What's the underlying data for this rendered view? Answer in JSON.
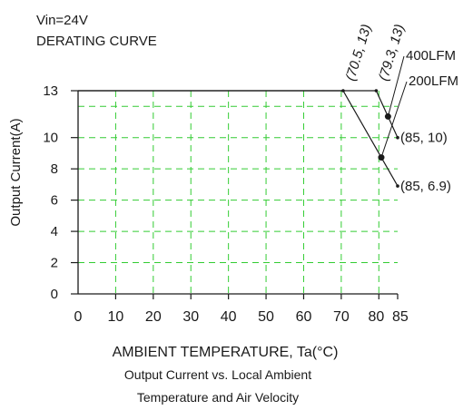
{
  "header": {
    "line1": "Vin=24V",
    "line2": "DERATING CURVE"
  },
  "chart_data": {
    "type": "line",
    "title": "DERATING CURVE",
    "xlabel": "AMBIENT TEMPERATURE, Ta(°C)",
    "ylabel": "Output Current(A)",
    "xlim": [
      0,
      85
    ],
    "ylim": [
      0,
      13
    ],
    "x_ticks": [
      0,
      10,
      20,
      30,
      40,
      50,
      60,
      70,
      80,
      85
    ],
    "y_ticks": [
      0,
      2,
      4,
      6,
      8,
      10,
      13
    ],
    "grid": true,
    "series": [
      {
        "name": "400LFM",
        "x": [
          0,
          79.3,
          85
        ],
        "y": [
          13,
          13,
          10
        ]
      },
      {
        "name": "200LFM",
        "x": [
          0,
          70.5,
          85
        ],
        "y": [
          13,
          13,
          6.9
        ]
      }
    ],
    "annotations": [
      {
        "text": "(70.5,  13)",
        "x": 70.5,
        "y": 13
      },
      {
        "text": "(79.3,  13)",
        "x": 79.3,
        "y": 13
      },
      {
        "text": "(85,  10)",
        "x": 85,
        "y": 10
      },
      {
        "text": "(85,  6.9)",
        "x": 85,
        "y": 6.9
      }
    ]
  },
  "caption": {
    "line1": "Output Current vs. Local Ambient",
    "line2": "Temperature and Air Velocity"
  },
  "colors": {
    "grid": "#33cc33",
    "axis": "#1a1a1a",
    "line": "#1a1a1a"
  }
}
